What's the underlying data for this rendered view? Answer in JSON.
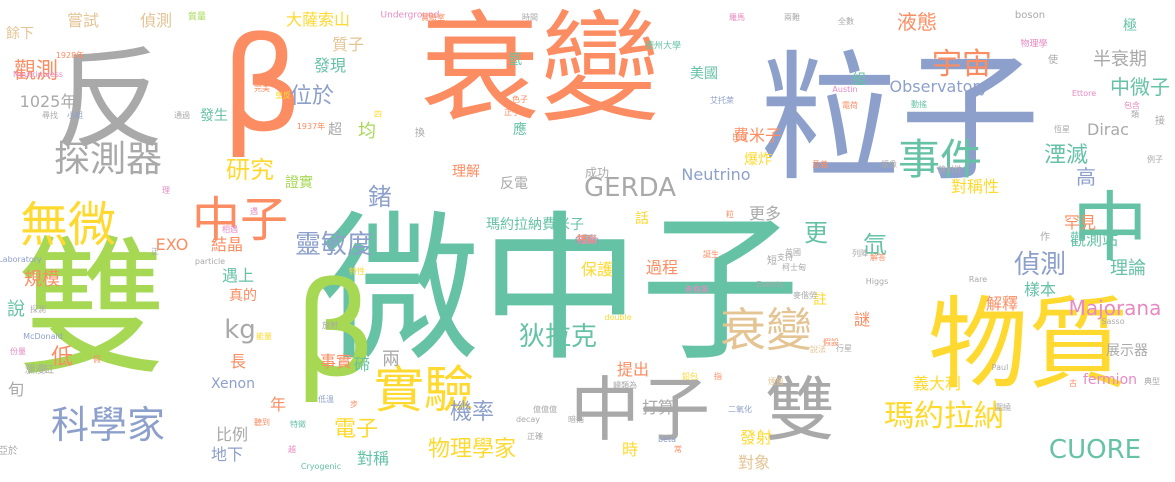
{
  "palette": {
    "gray": "#a9a9a9",
    "green": "#66c2a5",
    "orange": "#fc8d62",
    "blue": "#8da0cb",
    "pink": "#e78ac3",
    "lime": "#a6d854",
    "yellow": "#ffd92f",
    "tan": "#e5c494"
  },
  "words": [
    {
      "text": "微中子",
      "color": "green",
      "weight": 10
    },
    {
      "text": "雙",
      "color": "lime",
      "weight": 10
    },
    {
      "text": "粒子",
      "color": "blue",
      "weight": 9
    },
    {
      "text": "衰變",
      "color": "orange",
      "weight": 9
    },
    {
      "text": "β",
      "color": "orange",
      "weight": 9
    },
    {
      "text": "β",
      "color": "lime",
      "weight": 9
    },
    {
      "text": "反",
      "color": "gray",
      "weight": 9
    },
    {
      "text": "物質",
      "color": "yellow",
      "weight": 7
    },
    {
      "text": "中",
      "color": "green",
      "weight": 6
    },
    {
      "text": "中子",
      "color": "gray",
      "weight": 6
    },
    {
      "text": "雙",
      "color": "gray",
      "weight": 6
    },
    {
      "text": "無微",
      "color": "yellow",
      "weight": 5
    },
    {
      "text": "中子",
      "color": "orange",
      "weight": 5
    },
    {
      "text": "實驗",
      "color": "yellow",
      "weight": 5
    },
    {
      "text": "衰變",
      "color": "tan",
      "weight": 5
    },
    {
      "text": "科學家",
      "color": "blue",
      "weight": 4
    },
    {
      "text": "探測器",
      "color": "gray",
      "weight": 4
    },
    {
      "text": "事件",
      "color": "green",
      "weight": 4
    },
    {
      "text": "宇宙",
      "color": "orange",
      "weight": 3
    },
    {
      "text": "瑪約拉納",
      "color": "yellow",
      "weight": 3
    },
    {
      "text": "CUORE",
      "color": "green",
      "weight": 3
    },
    {
      "text": "GERDA",
      "color": "gray",
      "weight": 3
    },
    {
      "text": "靈敏度",
      "color": "blue",
      "weight": 3
    },
    {
      "text": "狄拉克",
      "color": "green",
      "weight": 3
    },
    {
      "text": "研究",
      "color": "yellow",
      "weight": 3
    },
    {
      "text": "觀測",
      "color": "orange",
      "weight": 3
    },
    {
      "text": "偵測",
      "color": "blue",
      "weight": 3
    },
    {
      "text": "位於",
      "color": "blue",
      "weight": 3
    },
    {
      "text": "物理學家",
      "color": "yellow",
      "weight": 3
    },
    {
      "text": "機率",
      "color": "blue",
      "weight": 3
    },
    {
      "text": "電子",
      "color": "yellow",
      "weight": 3
    },
    {
      "text": "鍺",
      "color": "blue",
      "weight": 3
    },
    {
      "text": "kg",
      "color": "gray",
      "weight": 3
    },
    {
      "text": "更",
      "color": "green",
      "weight": 3
    },
    {
      "text": "氙",
      "color": "green",
      "weight": 3
    },
    {
      "text": "湮滅",
      "color": "green",
      "weight": 2
    },
    {
      "text": "液態",
      "color": "orange",
      "weight": 2
    },
    {
      "text": "中微子",
      "color": "green",
      "weight": 2
    },
    {
      "text": "半衰期",
      "color": "gray",
      "weight": 2
    },
    {
      "text": "Majorana",
      "color": "pink",
      "weight": 2
    },
    {
      "text": "Observatory",
      "color": "blue",
      "weight": 2
    },
    {
      "text": "1025年",
      "color": "gray",
      "weight": 2
    },
    {
      "text": "嘗試",
      "color": "tan",
      "weight": 2
    },
    {
      "text": "偵測",
      "color": "tan",
      "weight": 2
    },
    {
      "text": "大薩索山",
      "color": "yellow",
      "weight": 2
    },
    {
      "text": "質子",
      "color": "tan",
      "weight": 2
    },
    {
      "text": "發現",
      "color": "green",
      "weight": 2
    },
    {
      "text": "發生",
      "color": "green",
      "weight": 2
    },
    {
      "text": "規模",
      "color": "orange",
      "weight": 2
    },
    {
      "text": "說",
      "color": "green",
      "weight": 2
    },
    {
      "text": "低",
      "color": "orange",
      "weight": 2
    },
    {
      "text": "長",
      "color": "orange",
      "weight": 2
    },
    {
      "text": "遇上",
      "color": "green",
      "weight": 2
    },
    {
      "text": "真的",
      "color": "orange",
      "weight": 2
    },
    {
      "text": "結晶",
      "color": "orange",
      "weight": 2
    },
    {
      "text": "EXO",
      "color": "orange",
      "weight": 2
    },
    {
      "text": "Xenon",
      "color": "blue",
      "weight": 2
    },
    {
      "text": "年",
      "color": "orange",
      "weight": 2
    },
    {
      "text": "比例",
      "color": "gray",
      "weight": 2
    },
    {
      "text": "地下",
      "color": "blue",
      "weight": 2
    },
    {
      "text": "事實",
      "color": "orange",
      "weight": 2
    },
    {
      "text": "對稱",
      "color": "green",
      "weight": 2
    },
    {
      "text": "碲",
      "color": "green",
      "weight": 2
    },
    {
      "text": "兩",
      "color": "gray",
      "weight": 2
    },
    {
      "text": "保護",
      "color": "yellow",
      "weight": 2
    },
    {
      "text": "過程",
      "color": "orange",
      "weight": 2
    },
    {
      "text": "提出",
      "color": "orange",
      "weight": 2
    },
    {
      "text": "時",
      "color": "yellow",
      "weight": 2
    },
    {
      "text": "打算",
      "color": "gray",
      "weight": 2
    },
    {
      "text": "發射",
      "color": "yellow",
      "weight": 2
    },
    {
      "text": "對象",
      "color": "tan",
      "weight": 2
    },
    {
      "text": "義大利",
      "color": "yellow",
      "weight": 2
    },
    {
      "text": "展示器",
      "color": "gray",
      "weight": 2
    },
    {
      "text": "fermion",
      "color": "pink",
      "weight": 2
    },
    {
      "text": "解釋",
      "color": "orange",
      "weight": 2
    },
    {
      "text": "樣本",
      "color": "green",
      "weight": 2
    },
    {
      "text": "理論",
      "color": "green",
      "weight": 2
    },
    {
      "text": "觀測站",
      "color": "green",
      "weight": 2
    },
    {
      "text": "罕見",
      "color": "orange",
      "weight": 2
    },
    {
      "text": "高",
      "color": "blue",
      "weight": 2
    },
    {
      "text": "對稱性",
      "color": "yellow",
      "weight": 2
    },
    {
      "text": "Dirac",
      "color": "gray",
      "weight": 2
    },
    {
      "text": "均",
      "color": "lime",
      "weight": 2
    },
    {
      "text": "證實",
      "color": "lime",
      "weight": 2
    },
    {
      "text": "理解",
      "color": "orange",
      "weight": 1
    },
    {
      "text": "反電",
      "color": "gray",
      "weight": 2
    },
    {
      "text": "成功",
      "color": "gray",
      "weight": 1
    },
    {
      "text": "瑪約拉納費米子",
      "color": "green",
      "weight": 1
    },
    {
      "text": "話",
      "color": "yellow",
      "weight": 2
    },
    {
      "text": "Neutrino",
      "color": "blue",
      "weight": 1
    },
    {
      "text": "更多",
      "color": "gray",
      "weight": 2
    },
    {
      "text": "費米子",
      "color": "orange",
      "weight": 2
    },
    {
      "text": "爆炸",
      "color": "yellow",
      "weight": 2
    },
    {
      "text": "組",
      "color": "green",
      "weight": 1
    },
    {
      "text": "美國",
      "color": "green",
      "weight": 1
    },
    {
      "text": "氫",
      "color": "green",
      "weight": 1
    },
    {
      "text": "極",
      "color": "green",
      "weight": 1
    },
    {
      "text": "超",
      "color": "gray",
      "weight": 1
    },
    {
      "text": "應",
      "color": "green",
      "weight": 1
    },
    {
      "text": "謎",
      "color": "orange",
      "weight": 1
    },
    {
      "text": "註",
      "color": "yellow",
      "weight": 2
    },
    {
      "text": "餘下",
      "color": "tan",
      "weight": 1
    },
    {
      "text": "質量",
      "color": "lime",
      "weight": 1
    },
    {
      "text": "Underground",
      "color": "pink",
      "weight": 0
    },
    {
      "text": "boson",
      "color": "gray",
      "weight": 0
    },
    {
      "text": "Neutrinoless",
      "color": "pink",
      "weight": 0
    },
    {
      "text": "McDonald",
      "color": "blue",
      "weight": 0
    },
    {
      "text": "Laboratory",
      "color": "blue",
      "weight": 0
    },
    {
      "text": "particle",
      "color": "gray",
      "weight": 0
    },
    {
      "text": "Cryogenic",
      "color": "green",
      "weight": 0
    },
    {
      "text": "Events",
      "color": "gray",
      "weight": 0
    },
    {
      "text": "Higgs",
      "color": "gray",
      "weight": 0
    },
    {
      "text": "Rare",
      "color": "gray",
      "weight": 0
    },
    {
      "text": "Sasso",
      "color": "gray",
      "weight": 0
    },
    {
      "text": "Ettore",
      "color": "pink",
      "weight": 0
    },
    {
      "text": "Austin",
      "color": "pink",
      "weight": 0
    },
    {
      "text": "Paul",
      "color": "gray",
      "weight": 0
    },
    {
      "text": "decay",
      "color": "gray",
      "weight": 0
    },
    {
      "text": "beta",
      "color": "blue",
      "weight": 0
    },
    {
      "text": "double",
      "color": "yellow",
      "weight": 0
    },
    {
      "text": "1937年",
      "color": "orange",
      "weight": 0
    },
    {
      "text": "1928年",
      "color": "orange",
      "weight": 0
    },
    {
      "text": "物理學",
      "color": "pink",
      "weight": 0
    },
    {
      "text": "德州大學",
      "color": "green",
      "weight": 0
    },
    {
      "text": "艾托萊",
      "color": "blue",
      "weight": 0
    },
    {
      "text": "放射性",
      "color": "gray",
      "weight": 0
    },
    {
      "text": "麥偕勞",
      "color": "gray",
      "weight": 0
    },
    {
      "text": "希格斯",
      "color": "pink",
      "weight": 0
    },
    {
      "text": "二氧化",
      "color": "blue",
      "weight": 0
    },
    {
      "text": "正確",
      "color": "gray",
      "weight": 0
    },
    {
      "text": "暗指",
      "color": "gray",
      "weight": 0
    },
    {
      "text": "假設",
      "color": "orange",
      "weight": 0
    },
    {
      "text": "意義",
      "color": "orange",
      "weight": 0
    },
    {
      "text": "鏡像",
      "color": "gray",
      "weight": 0
    },
    {
      "text": "恆星",
      "color": "gray",
      "weight": 0
    },
    {
      "text": "包含",
      "color": "pink",
      "weight": 0
    },
    {
      "text": "例子",
      "color": "gray",
      "weight": 0
    },
    {
      "text": "實驗室",
      "color": "orange",
      "weight": 0
    },
    {
      "text": "時間",
      "color": "gray",
      "weight": 0
    },
    {
      "text": "羅馬",
      "color": "pink",
      "weight": 0
    },
    {
      "text": "兩難",
      "color": "gray",
      "weight": 0
    },
    {
      "text": "全數",
      "color": "gray",
      "weight": 0
    },
    {
      "text": "小組",
      "color": "blue",
      "weight": 0
    },
    {
      "text": "尋找",
      "color": "gray",
      "weight": 0
    },
    {
      "text": "通過",
      "color": "gray",
      "weight": 0
    },
    {
      "text": "色子",
      "color": "orange",
      "weight": 0
    },
    {
      "text": "正子",
      "color": "orange",
      "weight": 0
    },
    {
      "text": "完美",
      "color": "orange",
      "weight": 0
    },
    {
      "text": "四",
      "color": "yellow",
      "weight": 0
    },
    {
      "text": "比反",
      "color": "orange",
      "weight": 0
    },
    {
      "text": "電荷",
      "color": "orange",
      "weight": 0
    },
    {
      "text": "動搖",
      "color": "green",
      "weight": 0
    },
    {
      "text": "特性",
      "color": "yellow",
      "weight": 0
    },
    {
      "text": "誕生",
      "color": "orange",
      "weight": 0
    },
    {
      "text": "支持",
      "color": "gray",
      "weight": 0
    },
    {
      "text": "英國",
      "color": "gray",
      "weight": 0
    },
    {
      "text": "柯士甸",
      "color": "gray",
      "weight": 0
    },
    {
      "text": "列陣",
      "color": "gray",
      "weight": 0
    },
    {
      "text": "解答",
      "color": "orange",
      "weight": 0
    },
    {
      "text": "相遇",
      "color": "pink",
      "weight": 0
    },
    {
      "text": "放射",
      "color": "gray",
      "weight": 0
    },
    {
      "text": "探測",
      "color": "gray",
      "weight": 0
    },
    {
      "text": "份量",
      "color": "pink",
      "weight": 0
    },
    {
      "text": "能量",
      "color": "yellow",
      "weight": 0
    },
    {
      "text": "聽到",
      "color": "orange",
      "weight": 0
    },
    {
      "text": "特徵",
      "color": "green",
      "weight": 0
    },
    {
      "text": "低溫",
      "color": "blue",
      "weight": 0
    },
    {
      "text": "鉛包",
      "color": "yellow",
      "weight": 0
    },
    {
      "text": "歸類為",
      "color": "gray",
      "weight": 0
    },
    {
      "text": "說法",
      "color": "tan",
      "weight": 0
    },
    {
      "text": "行星",
      "color": "gray",
      "weight": 0
    },
    {
      "text": "圍繞",
      "color": "gray",
      "weight": 0
    },
    {
      "text": "煙囪",
      "color": "tan",
      "weight": 0
    },
    {
      "text": "典型",
      "color": "gray",
      "weight": 0
    },
    {
      "text": "億億億",
      "color": "gray",
      "weight": 0
    },
    {
      "text": "亞於",
      "color": "gray",
      "weight": 0
    },
    {
      "text": "瀰漫",
      "color": "gray",
      "weight": 0
    },
    {
      "text": "旬",
      "color": "gray",
      "weight": 0
    },
    {
      "text": "缸",
      "color": "gray",
      "weight": 0
    },
    {
      "text": "假",
      "color": "orange",
      "weight": 0
    },
    {
      "text": "常",
      "color": "orange",
      "weight": 0
    },
    {
      "text": "指",
      "color": "orange",
      "weight": 1
    },
    {
      "text": "古",
      "color": "orange",
      "weight": 0
    },
    {
      "text": "作",
      "color": "gray",
      "weight": 0
    },
    {
      "text": "短",
      "color": "gray",
      "weight": 0
    },
    {
      "text": "使",
      "color": "gray",
      "weight": 0
    },
    {
      "text": "接",
      "color": "gray",
      "weight": 0
    },
    {
      "text": "越",
      "color": "pink",
      "weight": 0
    },
    {
      "text": "正",
      "color": "gray",
      "weight": 0
    },
    {
      "text": "遇",
      "color": "pink",
      "weight": 0
    },
    {
      "text": "理",
      "color": "pink",
      "weight": 0
    },
    {
      "text": "步",
      "color": "orange",
      "weight": 0
    },
    {
      "text": "類",
      "color": "gray",
      "weight": 0
    },
    {
      "text": "粒",
      "color": "orange",
      "weight": 0
    },
    {
      "text": "換",
      "color": "gray",
      "weight": 0
    },
    {
      "text": "皇反",
      "color": "yellow",
      "weight": 0
    },
    {
      "text": "隱瞞",
      "color": "gray",
      "weight": 0
    },
    {
      "text": "刻",
      "color": "gray",
      "weight": 0
    },
    {
      "text": "Gran",
      "color": "blue",
      "weight": 0
    },
    {
      "text": "裏",
      "color": "gray",
      "weight": 0
    },
    {
      "text": "拓出",
      "color": "pink",
      "weight": 0
    },
    {
      "text": "特以",
      "color": "orange",
      "weight": 0
    }
  ]
}
